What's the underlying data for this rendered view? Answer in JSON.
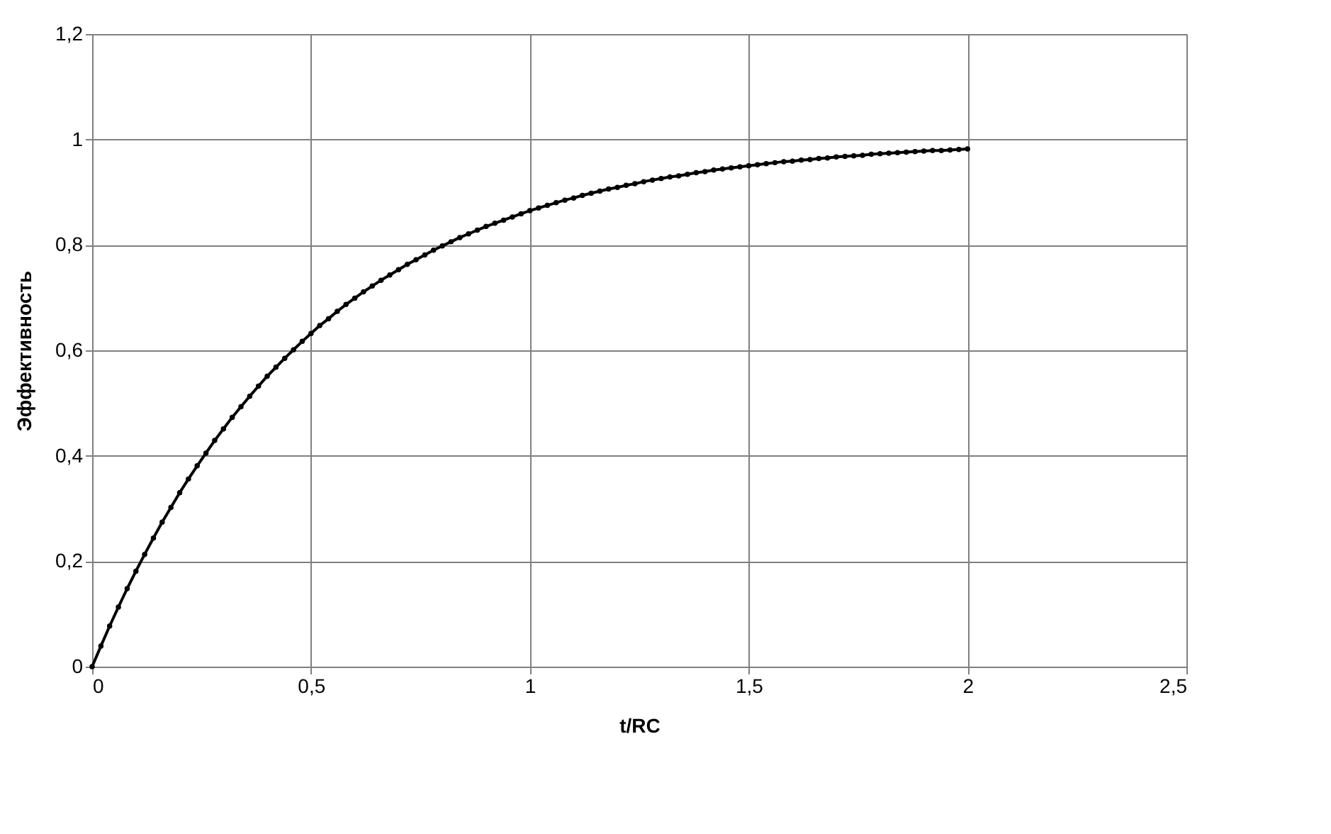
{
  "chart_data": {
    "type": "line",
    "xlabel": "t/RC",
    "ylabel": "Эффективность",
    "x": [
      0,
      0.02,
      0.04,
      0.06,
      0.08,
      0.1,
      0.12,
      0.14,
      0.16,
      0.18,
      0.2,
      0.22,
      0.24,
      0.26,
      0.28,
      0.3,
      0.32,
      0.34,
      0.36,
      0.38,
      0.4,
      0.42,
      0.44,
      0.46,
      0.48,
      0.5,
      0.52,
      0.54,
      0.56,
      0.58,
      0.6,
      0.62,
      0.64,
      0.66,
      0.68,
      0.7,
      0.72,
      0.74,
      0.76,
      0.78,
      0.8,
      0.82,
      0.84,
      0.86,
      0.88,
      0.9,
      0.92,
      0.94,
      0.96,
      0.98,
      1,
      1.02,
      1.04,
      1.06,
      1.08,
      1.1,
      1.12,
      1.14,
      1.16,
      1.18,
      1.2,
      1.22,
      1.24,
      1.26,
      1.28,
      1.3,
      1.32,
      1.34,
      1.36,
      1.38,
      1.4,
      1.42,
      1.44,
      1.46,
      1.48,
      1.5,
      1.52,
      1.54,
      1.56,
      1.58,
      1.6,
      1.62,
      1.64,
      1.66,
      1.68,
      1.7,
      1.72,
      1.74,
      1.76,
      1.78,
      1.8,
      1.82,
      1.84,
      1.86,
      1.88,
      1.9,
      1.92,
      1.94,
      1.96,
      1.98,
      2
    ],
    "series": [
      {
        "color": "#000000",
        "values": [
          0,
          0.039,
          0.077,
          0.113,
          0.148,
          0.181,
          0.213,
          0.244,
          0.274,
          0.302,
          0.33,
          0.356,
          0.381,
          0.405,
          0.429,
          0.451,
          0.473,
          0.493,
          0.513,
          0.532,
          0.551,
          0.568,
          0.585,
          0.601,
          0.617,
          0.632,
          0.647,
          0.66,
          0.674,
          0.687,
          0.699,
          0.711,
          0.722,
          0.733,
          0.743,
          0.753,
          0.763,
          0.772,
          0.781,
          0.79,
          0.798,
          0.806,
          0.814,
          0.821,
          0.828,
          0.835,
          0.841,
          0.847,
          0.853,
          0.859,
          0.865,
          0.87,
          0.875,
          0.88,
          0.885,
          0.889,
          0.894,
          0.898,
          0.902,
          0.906,
          0.909,
          0.913,
          0.916,
          0.92,
          0.923,
          0.926,
          0.929,
          0.931,
          0.934,
          0.937,
          0.939,
          0.942,
          0.944,
          0.946,
          0.948,
          0.95,
          0.952,
          0.954,
          0.956,
          0.958,
          0.959,
          0.961,
          0.962,
          0.964,
          0.965,
          0.967,
          0.968,
          0.969,
          0.97,
          0.972,
          0.973,
          0.974,
          0.975,
          0.976,
          0.977,
          0.978,
          0.979,
          0.979,
          0.98,
          0.981,
          0.982
        ]
      }
    ],
    "xlim": [
      0,
      2.5
    ],
    "xticks": [
      0,
      {
        "value": 0.5,
        "label": "0,5"
      },
      1,
      {
        "value": 1.5,
        "label": "1,5"
      },
      2,
      {
        "value": 2.5,
        "label": "2,5"
      }
    ],
    "ylim": [
      0,
      1.2
    ],
    "yticks": [
      0,
      {
        "value": 0.2,
        "label": "0,2"
      },
      {
        "value": 0.4,
        "label": "0,4"
      },
      {
        "value": 0.6,
        "label": "0,6"
      },
      {
        "value": 0.8,
        "label": "0,8"
      },
      1,
      {
        "value": 1.2,
        "label": "1,2"
      }
    ],
    "grid": true,
    "marker": "circle",
    "line_style": "solid"
  }
}
